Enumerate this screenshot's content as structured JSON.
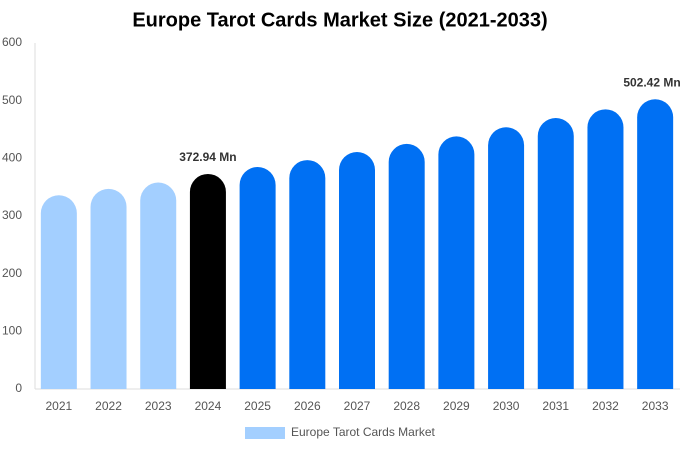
{
  "chart_data": {
    "type": "bar",
    "title": "Europe Tarot Cards Market Size (2021-2033)",
    "categories": [
      "2021",
      "2022",
      "2023",
      "2024",
      "2025",
      "2026",
      "2027",
      "2028",
      "2029",
      "2030",
      "2031",
      "2032",
      "2033"
    ],
    "series": [
      {
        "name": "Europe Tarot Cards Market",
        "color": "#a3cfff",
        "values": [
          336,
          347,
          358,
          372.94,
          385,
          397,
          411,
          425,
          438,
          454,
          470,
          485,
          502.42
        ],
        "value_labels": [
          null,
          null,
          null,
          "372.94 Mn",
          null,
          null,
          null,
          null,
          null,
          null,
          null,
          null,
          "502.42 Mn"
        ],
        "colors": [
          "#a3cfff",
          "#a3cfff",
          "#a3cfff",
          "#000000",
          "#0070f3",
          "#0070f3",
          "#0070f3",
          "#0070f3",
          "#0070f3",
          "#0070f3",
          "#0070f3",
          "#0070f3",
          "#0070f3"
        ]
      }
    ],
    "ylim": [
      0,
      600
    ],
    "yticks": [
      0,
      100,
      200,
      300,
      400,
      500,
      600
    ],
    "legend": "bottom"
  }
}
